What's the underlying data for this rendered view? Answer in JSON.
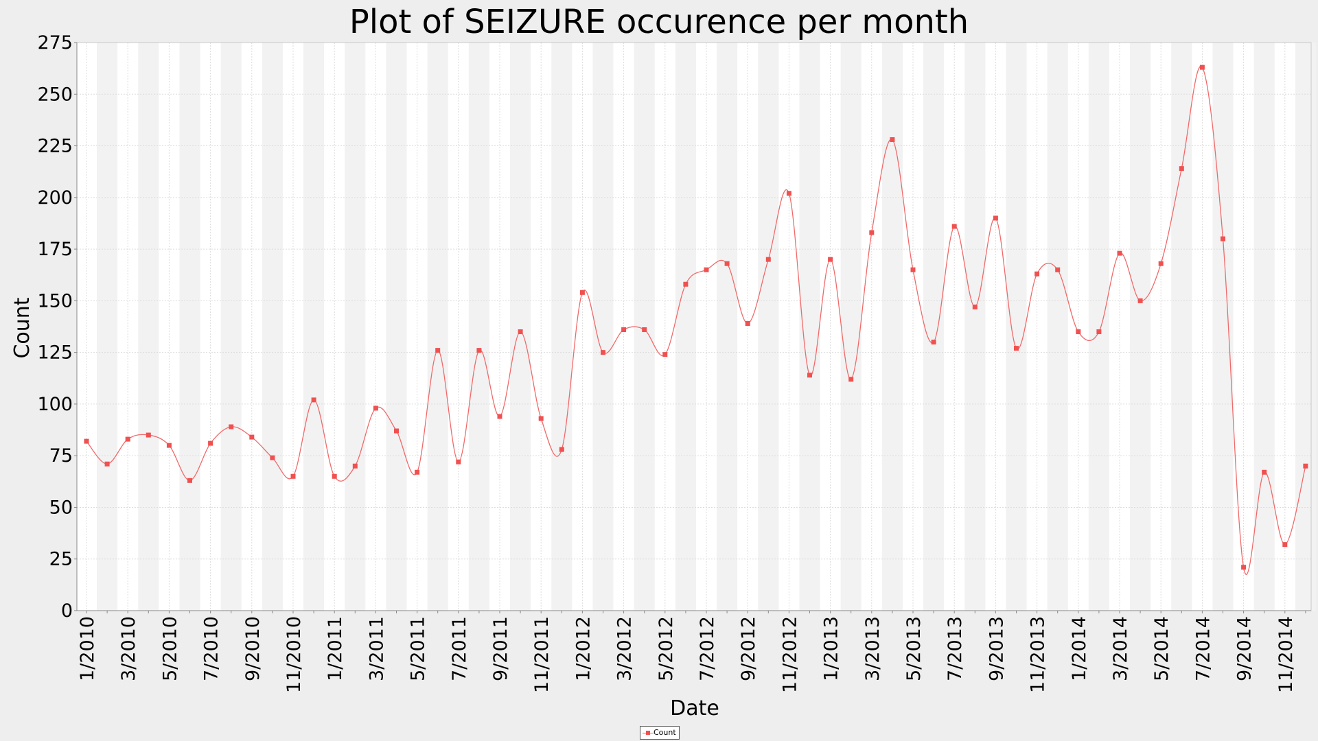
{
  "chart_data": {
    "type": "line",
    "title": "Plot of SEIZURE occurence per month",
    "xlabel": "Date",
    "ylabel": "Count",
    "ylim": [
      0,
      275
    ],
    "y_ticks": [
      "0",
      "25",
      "50",
      "75",
      "100",
      "125",
      "150",
      "175",
      "200",
      "225",
      "250",
      "275"
    ],
    "x_tick_labels": [
      "1/2010",
      "3/2010",
      "5/2010",
      "7/2010",
      "9/2010",
      "11/2010",
      "1/2011",
      "3/2011",
      "5/2011",
      "7/2011",
      "9/2011",
      "11/2011",
      "1/2012",
      "3/2012",
      "5/2012",
      "7/2012",
      "9/2012",
      "11/2012",
      "1/2013",
      "3/2013",
      "5/2013",
      "7/2013",
      "9/2013",
      "11/2013",
      "1/2014",
      "3/2014",
      "5/2014",
      "7/2014",
      "9/2014",
      "11/2014"
    ],
    "grid": true,
    "legend_position": "bottom-center",
    "series": [
      {
        "name": "Count",
        "color": "#f05050",
        "x": [
          "1/2010",
          "2/2010",
          "3/2010",
          "4/2010",
          "5/2010",
          "6/2010",
          "7/2010",
          "8/2010",
          "9/2010",
          "10/2010",
          "11/2010",
          "12/2010",
          "1/2011",
          "2/2011",
          "3/2011",
          "4/2011",
          "5/2011",
          "6/2011",
          "7/2011",
          "8/2011",
          "9/2011",
          "10/2011",
          "11/2011",
          "12/2011",
          "1/2012",
          "2/2012",
          "3/2012",
          "4/2012",
          "5/2012",
          "6/2012",
          "7/2012",
          "8/2012",
          "9/2012",
          "10/2012",
          "11/2012",
          "12/2012",
          "1/2013",
          "2/2013",
          "3/2013",
          "4/2013",
          "5/2013",
          "6/2013",
          "7/2013",
          "8/2013",
          "9/2013",
          "10/2013",
          "11/2013",
          "12/2013",
          "1/2014",
          "2/2014",
          "3/2014",
          "4/2014",
          "5/2014",
          "6/2014",
          "7/2014",
          "8/2014",
          "9/2014",
          "10/2014",
          "11/2014",
          "12/2014"
        ],
        "values": [
          82,
          71,
          83,
          85,
          80,
          63,
          81,
          89,
          84,
          74,
          65,
          102,
          65,
          70,
          98,
          87,
          67,
          126,
          72,
          126,
          94,
          135,
          93,
          78,
          154,
          125,
          136,
          136,
          124,
          158,
          165,
          168,
          139,
          170,
          202,
          114,
          170,
          112,
          183,
          228,
          165,
          130,
          186,
          147,
          190,
          127,
          163,
          165,
          135,
          135,
          173,
          150,
          168,
          214,
          263,
          180,
          21,
          67,
          32,
          70
        ]
      }
    ]
  }
}
